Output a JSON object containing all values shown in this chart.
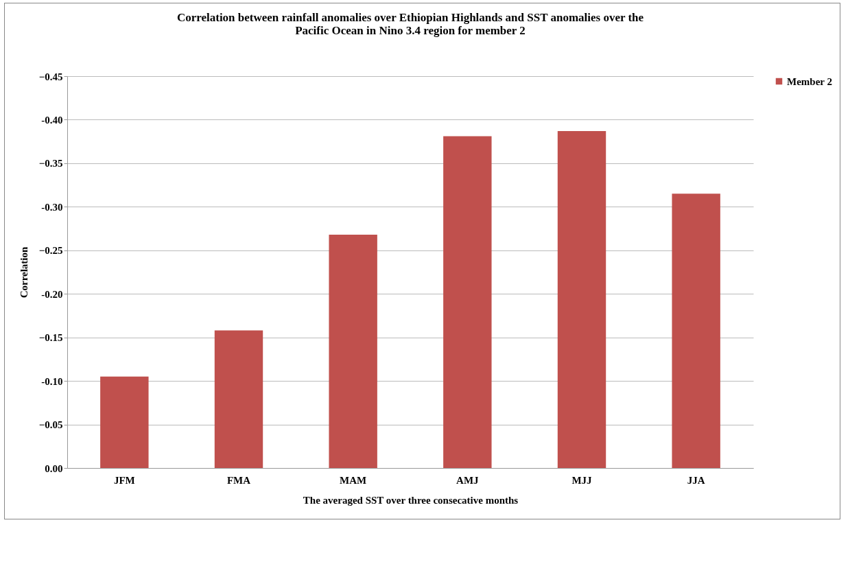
{
  "chart_data": {
    "type": "bar",
    "title": "Correlation between rainfall anomalies over Ethiopian Highlands and SST anomalies over the Pacific Ocean in Nino 3.4 region for member 2",
    "xlabel": "The averaged SST over three consecative months",
    "ylabel": "Correlation",
    "categories": [
      "JFM",
      "FMA",
      "MAM",
      "AMJ",
      "MJJ",
      "JJA"
    ],
    "series": [
      {
        "name": "Member 2",
        "color": "#c0504d",
        "values": [
          -0.105,
          -0.158,
          -0.268,
          -0.381,
          -0.387,
          -0.315
        ]
      }
    ],
    "ylim": [
      0,
      -0.45
    ],
    "yticks": [
      {
        "value": 0,
        "label": "0.00"
      },
      -0.05,
      {
        "value": -0.1,
        "label": "-0.10"
      },
      -0.15,
      {
        "value": -0.2,
        "label": "-0.20"
      },
      -0.25,
      {
        "value": -0.3,
        "label": "-0.30"
      },
      -0.35,
      {
        "value": -0.4,
        "label": "-0.40"
      },
      -0.45
    ],
    "grid": "y",
    "legend": "right"
  }
}
